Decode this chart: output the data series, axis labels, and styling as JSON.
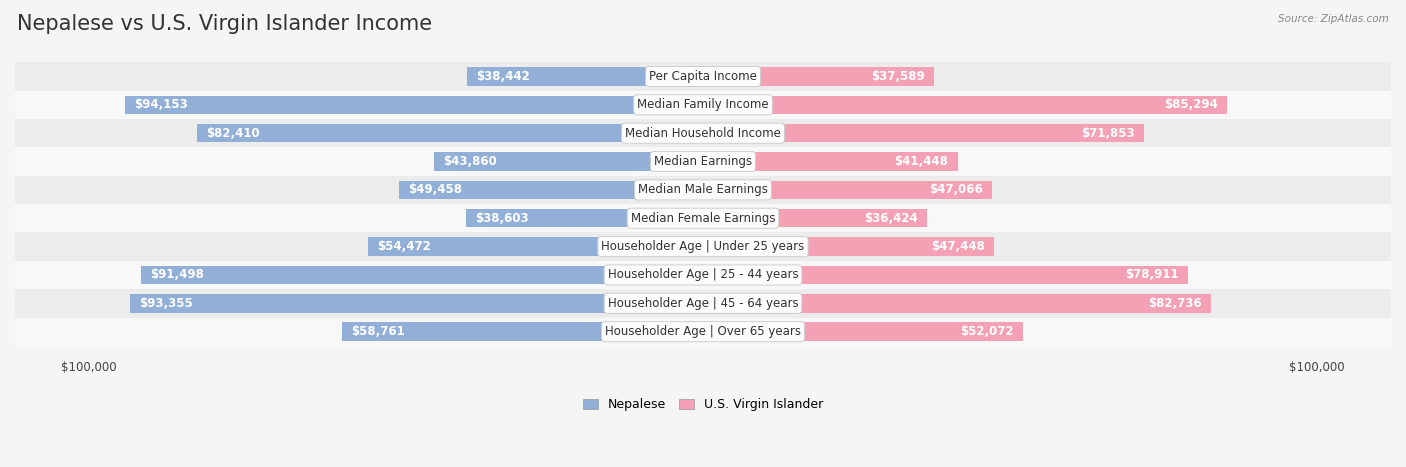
{
  "title": "Nepalese vs U.S. Virgin Islander Income",
  "source": "Source: ZipAtlas.com",
  "categories": [
    "Per Capita Income",
    "Median Family Income",
    "Median Household Income",
    "Median Earnings",
    "Median Male Earnings",
    "Median Female Earnings",
    "Householder Age | Under 25 years",
    "Householder Age | 25 - 44 years",
    "Householder Age | 45 - 64 years",
    "Householder Age | Over 65 years"
  ],
  "nepalese_values": [
    38442,
    94153,
    82410,
    43860,
    49458,
    38603,
    54472,
    91498,
    93355,
    58761
  ],
  "virgin_values": [
    37589,
    85294,
    71853,
    41448,
    47066,
    36424,
    47448,
    78911,
    82736,
    52072
  ],
  "nepalese_labels": [
    "$38,442",
    "$94,153",
    "$82,410",
    "$43,860",
    "$49,458",
    "$38,603",
    "$54,472",
    "$91,498",
    "$93,355",
    "$58,761"
  ],
  "virgin_labels": [
    "$37,589",
    "$85,294",
    "$71,853",
    "$41,448",
    "$47,066",
    "$36,424",
    "$47,448",
    "$78,911",
    "$82,736",
    "$52,072"
  ],
  "max_val": 100000,
  "nepalese_color": "#92afd7",
  "virgin_color": "#f4a0b5",
  "bg_color": "#f5f5f5",
  "title_fontsize": 15,
  "label_fontsize": 8.5,
  "category_fontsize": 8.5,
  "legend_fontsize": 9,
  "axis_label_fontsize": 8.5,
  "inside_threshold": 20000
}
